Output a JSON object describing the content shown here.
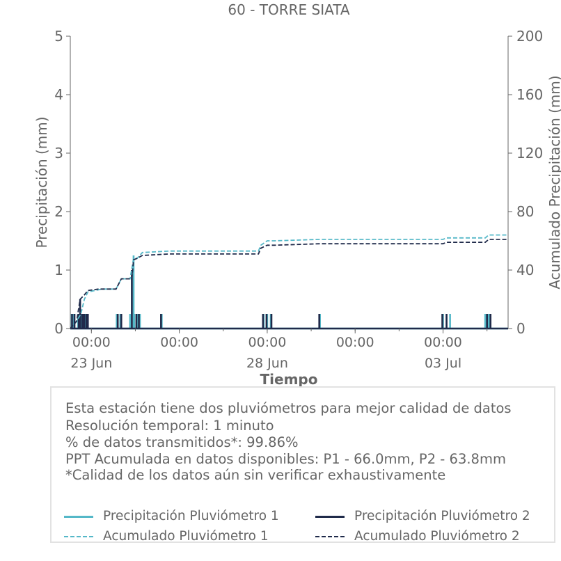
{
  "chart_data": {
    "type": "line",
    "title": "60 - TORRE SIATA",
    "xlabel": "Tiempo",
    "ylabel": "Precipitación (mm)",
    "y2label": "Acumulado Precipitación (mm)",
    "ylim": [
      0,
      5
    ],
    "y2lim": [
      0,
      200
    ],
    "yticks": [
      "0",
      "1",
      "2",
      "3",
      "4",
      "5"
    ],
    "y2ticks": [
      "0",
      "40",
      "80",
      "120",
      "160",
      "200"
    ],
    "xlim_days": [
      -0.6,
      11.85
    ],
    "x_ticks": [
      {
        "day": 0,
        "label": "00:00",
        "date": "23 Jun"
      },
      {
        "day": 2.5,
        "label": "00:00",
        "date": ""
      },
      {
        "day": 5,
        "label": "00:00",
        "date": "28 Jun"
      },
      {
        "day": 7.5,
        "label": "00:00",
        "date": ""
      },
      {
        "day": 10,
        "label": "00:00",
        "date": "03 Jul"
      },
      {
        "day": 12.5,
        "label": "00:00",
        "date": ""
      }
    ],
    "grid": false,
    "series": [
      {
        "name": "Precipitación Pluviómetro 1",
        "axis": "left",
        "style": "solid",
        "color": "#55b8c8",
        "points": [
          [
            -0.56,
            0.25
          ],
          [
            -0.5,
            0.25
          ],
          [
            -0.38,
            0.25
          ],
          [
            -0.33,
            0.25
          ],
          [
            -0.28,
            0.25
          ],
          [
            -0.22,
            0.25
          ],
          [
            -0.17,
            0.25
          ],
          [
            -0.12,
            0.25
          ],
          [
            0.72,
            0.25
          ],
          [
            0.82,
            0.25
          ],
          [
            1.1,
            0.25
          ],
          [
            1.2,
            1.25
          ],
          [
            1.22,
            0.25
          ],
          [
            1.3,
            0.25
          ],
          [
            1.38,
            0.25
          ],
          [
            2.0,
            0.25
          ],
          [
            4.9,
            0.25
          ],
          [
            5.0,
            0.25
          ],
          [
            5.1,
            0.25
          ],
          [
            6.5,
            0.25
          ],
          [
            10.0,
            0.25
          ],
          [
            10.2,
            0.25
          ],
          [
            11.2,
            0.25
          ],
          [
            11.3,
            0.25
          ],
          [
            12.5,
            0.25
          ]
        ]
      },
      {
        "name": "Precipitación Pluviómetro 2",
        "axis": "left",
        "style": "solid",
        "color": "#1f2a4a",
        "points": [
          [
            -0.55,
            0.25
          ],
          [
            -0.48,
            0.25
          ],
          [
            -0.36,
            0.25
          ],
          [
            -0.32,
            0.5
          ],
          [
            -0.26,
            0.25
          ],
          [
            -0.21,
            0.25
          ],
          [
            -0.15,
            0.25
          ],
          [
            -0.1,
            0.25
          ],
          [
            0.75,
            0.25
          ],
          [
            0.85,
            0.25
          ],
          [
            1.15,
            1.0
          ],
          [
            1.28,
            0.25
          ],
          [
            1.35,
            0.25
          ],
          [
            1.98,
            0.25
          ],
          [
            4.88,
            0.25
          ],
          [
            4.98,
            0.25
          ],
          [
            5.12,
            0.25
          ],
          [
            6.48,
            0.25
          ],
          [
            9.98,
            0.25
          ],
          [
            10.1,
            0.25
          ],
          [
            11.25,
            0.25
          ],
          [
            11.35,
            0.25
          ],
          [
            12.48,
            0.25
          ]
        ]
      },
      {
        "name": "Acumulado Pluviómetro 1",
        "axis": "right",
        "style": "dashed",
        "color": "#55b8c8",
        "points": [
          [
            -0.6,
            0
          ],
          [
            -0.45,
            4
          ],
          [
            -0.3,
            10
          ],
          [
            -0.2,
            20
          ],
          [
            -0.1,
            25
          ],
          [
            0.3,
            27
          ],
          [
            0.7,
            27
          ],
          [
            0.85,
            34
          ],
          [
            1.1,
            34
          ],
          [
            1.2,
            48
          ],
          [
            1.3,
            48
          ],
          [
            1.45,
            52
          ],
          [
            2.2,
            53
          ],
          [
            4.75,
            53
          ],
          [
            4.82,
            57
          ],
          [
            5.0,
            60
          ],
          [
            5.2,
            60
          ],
          [
            6.5,
            61
          ],
          [
            10.0,
            61
          ],
          [
            10.1,
            62
          ],
          [
            11.2,
            62
          ],
          [
            11.3,
            64
          ],
          [
            12.5,
            64
          ],
          [
            12.6,
            66
          ],
          [
            12.85,
            66
          ]
        ]
      },
      {
        "name": "Acumulado Pluviómetro 2",
        "axis": "right",
        "style": "dashed",
        "color": "#1f2a4a",
        "points": [
          [
            -0.6,
            0
          ],
          [
            -0.42,
            5
          ],
          [
            -0.32,
            20
          ],
          [
            -0.2,
            23
          ],
          [
            -0.1,
            26
          ],
          [
            0.2,
            27
          ],
          [
            0.7,
            27
          ],
          [
            0.85,
            34
          ],
          [
            1.15,
            34
          ],
          [
            1.2,
            47
          ],
          [
            1.3,
            48
          ],
          [
            1.45,
            50
          ],
          [
            2.2,
            51
          ],
          [
            4.75,
            51
          ],
          [
            4.82,
            55
          ],
          [
            5.0,
            57
          ],
          [
            5.2,
            57
          ],
          [
            6.5,
            58
          ],
          [
            10.0,
            58
          ],
          [
            10.1,
            59
          ],
          [
            11.2,
            59
          ],
          [
            11.3,
            61
          ],
          [
            12.5,
            61
          ],
          [
            12.6,
            63.8
          ],
          [
            12.85,
            63.8
          ]
        ]
      }
    ]
  },
  "info": {
    "lines": [
      "Esta estación tiene dos pluviómetros para mejor calidad de datos",
      "Resolución temporal: 1 minuto",
      "% de datos transmitidos*: 99.86%",
      "PPT Acumulada en datos disponibles: P1 - 66.0mm, P2 - 63.8mm",
      "*Calidad de los datos aún sin verificar exhaustivamente"
    ],
    "legend": [
      {
        "label": "Precipitación Pluviómetro 1",
        "color": "#55b8c8",
        "style": "solid"
      },
      {
        "label": "Precipitación Pluviómetro 2",
        "color": "#1f2a4a",
        "style": "solid"
      },
      {
        "label": "Acumulado Pluviómetro 1",
        "color": "#55b8c8",
        "style": "dashed"
      },
      {
        "label": "Acumulado Pluviómetro 2",
        "color": "#1f2a4a",
        "style": "dashed"
      }
    ]
  }
}
